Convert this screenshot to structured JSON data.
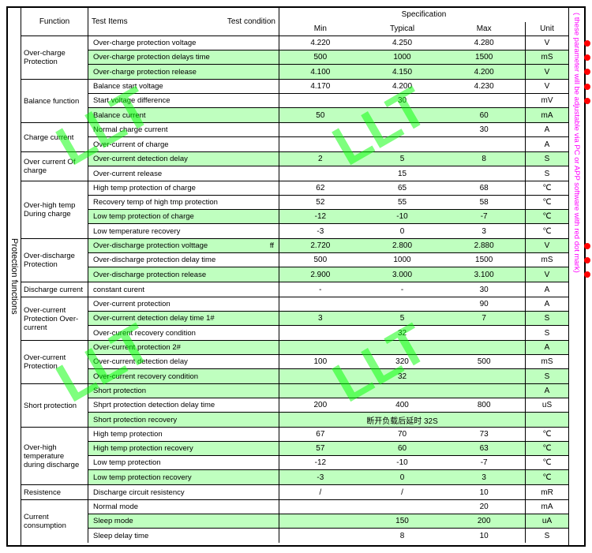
{
  "section_label": "Protection functions",
  "sidebar_note": "( these parameter will be adjustable via PC or APP software with red dot mark)",
  "header": {
    "function": "Function",
    "test_items": "Test Items",
    "test_condition": "Test condition",
    "specification": "Specification",
    "min": "Min",
    "typical": "Typical",
    "max": "Max",
    "unit": "Unit"
  },
  "watermark": "LLT",
  "groups": [
    {
      "name": "Over-charge Protection",
      "rows": [
        {
          "item": "Over-charge protection voltage",
          "min": "4.220",
          "typ": "4.250",
          "max": "4.280",
          "unit": "V",
          "hl": false,
          "dot": true
        },
        {
          "item": "Over-charge protection delays time",
          "min": "500",
          "typ": "1000",
          "max": "1500",
          "unit": "mS",
          "hl": true,
          "dot": true
        },
        {
          "item": "Over-charge protection release",
          "min": "4.100",
          "typ": "4.150",
          "max": "4.200",
          "unit": "V",
          "hl": true,
          "dot": true
        }
      ]
    },
    {
      "name": "Balance function",
      "rows": [
        {
          "item": "Balance start voltage",
          "min": "4.170",
          "typ": "4.200",
          "max": "4.230",
          "unit": "V",
          "hl": false,
          "dot": true
        },
        {
          "item": "Start voltage difference",
          "min": "",
          "typ": "30",
          "max": "",
          "unit": "mV",
          "hl": false,
          "dot": true
        },
        {
          "item": "Balance current",
          "min": "50",
          "typ": "",
          "max": "60",
          "unit": "mA",
          "hl": true
        }
      ]
    },
    {
      "name": "Charge current",
      "rows": [
        {
          "item": "Normal charge current",
          "min": "",
          "typ": "",
          "max": "30",
          "unit": "A",
          "hl": false
        },
        {
          "item": "Over-current of charge",
          "min": "",
          "typ": "",
          "max": "",
          "unit": "A",
          "hl": false
        }
      ]
    },
    {
      "name": "Over current Of charge",
      "rows": [
        {
          "item": "Over-current detection delay",
          "min": "2",
          "typ": "5",
          "max": "8",
          "unit": "S",
          "hl": true
        },
        {
          "item": "Over-current release",
          "span": "15",
          "unit": "S",
          "hl": false
        }
      ]
    },
    {
      "name": "Over-high temp During charge",
      "rows": [
        {
          "item": "High temp protection of charge",
          "min": "62",
          "typ": "65",
          "max": "68",
          "unit": "℃",
          "hl": false
        },
        {
          "item": "Recovery temp of high tmp protection",
          "min": "52",
          "typ": "55",
          "max": "58",
          "unit": "℃",
          "hl": false
        },
        {
          "item": "Low temp protection of charge",
          "min": "-12",
          "typ": "-10",
          "max": "-7",
          "unit": "℃",
          "hl": true
        },
        {
          "item": "Low temperature recovery",
          "min": "-3",
          "typ": "0",
          "max": "3",
          "unit": "℃",
          "hl": false
        }
      ]
    },
    {
      "name": "Over-discharge Protection",
      "rows": [
        {
          "item": "Over-discharge protection volttage",
          "cond": "ff",
          "min": "2.720",
          "typ": "2.800",
          "max": "2.880",
          "unit": "V",
          "hl": true,
          "dot": true
        },
        {
          "item": "Over-discharge protection delay time",
          "min": "500",
          "typ": "1000",
          "max": "1500",
          "unit": "mS",
          "hl": false,
          "dot": true
        },
        {
          "item": "Over-discharge protection release",
          "min": "2.900",
          "typ": "3.000",
          "max": "3.100",
          "unit": "V",
          "hl": true,
          "dot": true
        }
      ]
    },
    {
      "name": "Discharge current",
      "rows": [
        {
          "item": "constant curent",
          "min": "-",
          "typ": "-",
          "max": "30",
          "unit": "A",
          "hl": false
        }
      ]
    },
    {
      "name": "Over-current Protection Over-current",
      "rows": [
        {
          "item": "Over-current protection",
          "min": "",
          "typ": "",
          "max": "90",
          "unit": "A",
          "hl": false
        },
        {
          "item": "Over-current detection delay time 1#",
          "min": "3",
          "typ": "5",
          "max": "7",
          "unit": "S",
          "hl": true
        },
        {
          "item": "Over-curent recovery condition",
          "span": "32",
          "unit": "S",
          "hl": false
        }
      ]
    },
    {
      "name": "Over-current Protection",
      "rows": [
        {
          "item": "Over-current protection 2#",
          "min": "",
          "typ": "",
          "max": "",
          "unit": "A",
          "hl": true
        },
        {
          "item": "Over-current detection delay",
          "min": "100",
          "typ": "320",
          "max": "500",
          "unit": "mS",
          "hl": false
        },
        {
          "item": "Over-current recovery condition",
          "span": "32",
          "unit": "S",
          "hl": true
        }
      ]
    },
    {
      "name": "Short protection",
      "rows": [
        {
          "item": "Short protection",
          "min": "",
          "typ": "",
          "max": "",
          "unit": "A",
          "hl": true
        },
        {
          "item": "Shprt protection detection delay time",
          "min": "200",
          "typ": "400",
          "max": "800",
          "unit": "uS",
          "hl": false
        },
        {
          "item": "Short protection recovery",
          "span": "断开负载后延时 32S",
          "unit": "",
          "hl": true
        }
      ]
    },
    {
      "name": "Over-high temperature during discharge",
      "rows": [
        {
          "item": "High temp protection",
          "min": "67",
          "typ": "70",
          "max": "73",
          "unit": "℃",
          "hl": false
        },
        {
          "item": "High temp protection recovery",
          "min": "57",
          "typ": "60",
          "max": "63",
          "unit": "℃",
          "hl": true
        },
        {
          "item": "Low temp protection",
          "min": "-12",
          "typ": "-10",
          "max": "-7",
          "unit": "℃",
          "hl": false
        },
        {
          "item": "Low temp protection recovery",
          "min": "-3",
          "typ": "0",
          "max": "3",
          "unit": "℃",
          "hl": true
        }
      ]
    },
    {
      "name": "Resistence",
      "rows": [
        {
          "item": "Discharge circuit resistency",
          "min": "/",
          "typ": "/",
          "max": "10",
          "unit": "mR",
          "hl": false
        }
      ]
    },
    {
      "name": "Current consumption",
      "rows": [
        {
          "item": "Normal mode",
          "min": "",
          "typ": "",
          "max": "20",
          "unit": "mA",
          "hl": false
        },
        {
          "item": "Sleep mode",
          "min": "",
          "typ": "150",
          "max": "200",
          "unit": "uA",
          "hl": true
        },
        {
          "item": "Sleep delay time",
          "min": "",
          "typ": "8",
          "max": "10",
          "unit": "S",
          "hl": false
        }
      ]
    }
  ]
}
